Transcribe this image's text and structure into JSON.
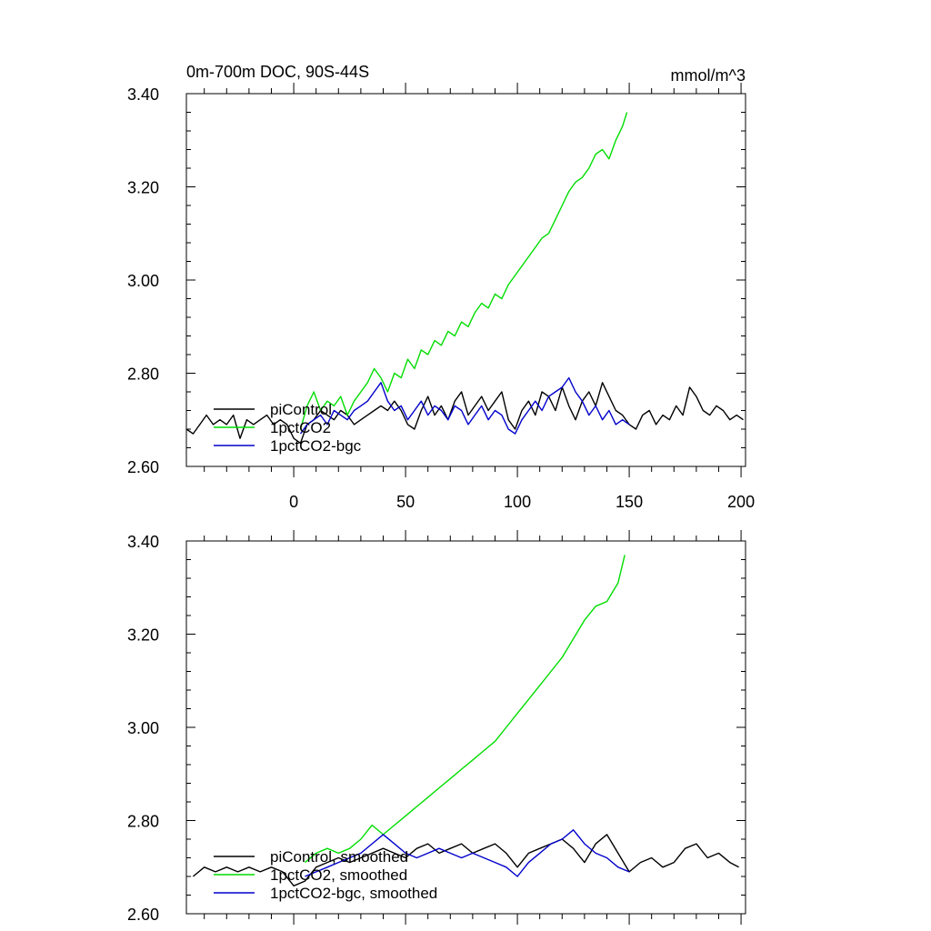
{
  "chart_data": [
    {
      "type": "line",
      "panel": "top",
      "title": "0m-700m DOC, 90S-44S",
      "units": "mmol/m^3",
      "xlim": [
        -48,
        202
      ],
      "ylim": [
        2.6,
        3.4
      ],
      "x_ticks": [
        0,
        50,
        100,
        150,
        200
      ],
      "x_tick_labels": [
        "0",
        "50",
        "100",
        "150",
        "200"
      ],
      "show_x_tick_labels": true,
      "y_ticks": [
        2.6,
        2.8,
        3.0,
        3.2,
        3.4
      ],
      "y_tick_labels": [
        "2.60",
        "2.80",
        "3.00",
        "3.20",
        "3.40"
      ],
      "legend_position": "bottom-left",
      "series": [
        {
          "name": "piControl",
          "color": "#000000",
          "x": [
            -48,
            -45,
            -42,
            -39,
            -36,
            -33,
            -30,
            -27,
            -24,
            -21,
            -18,
            -15,
            -12,
            -9,
            -6,
            -3,
            0,
            3,
            6,
            9,
            12,
            15,
            18,
            21,
            24,
            27,
            30,
            33,
            36,
            39,
            42,
            45,
            48,
            51,
            54,
            57,
            60,
            63,
            66,
            69,
            72,
            75,
            78,
            81,
            84,
            87,
            90,
            93,
            96,
            99,
            102,
            105,
            108,
            111,
            114,
            117,
            120,
            123,
            126,
            129,
            132,
            135,
            138,
            141,
            144,
            147,
            150,
            153,
            156,
            159,
            162,
            165,
            168,
            171,
            174,
            177,
            180,
            183,
            186,
            189,
            192,
            195,
            198,
            201
          ],
          "values": [
            2.68,
            2.67,
            2.69,
            2.71,
            2.69,
            2.7,
            2.69,
            2.71,
            2.66,
            2.7,
            2.69,
            2.7,
            2.71,
            2.69,
            2.7,
            2.69,
            2.66,
            2.65,
            2.69,
            2.7,
            2.72,
            2.71,
            2.7,
            2.72,
            2.71,
            2.69,
            2.7,
            2.71,
            2.72,
            2.73,
            2.72,
            2.74,
            2.72,
            2.69,
            2.68,
            2.72,
            2.75,
            2.71,
            2.73,
            2.7,
            2.74,
            2.76,
            2.71,
            2.73,
            2.75,
            2.72,
            2.74,
            2.76,
            2.7,
            2.68,
            2.72,
            2.74,
            2.71,
            2.76,
            2.75,
            2.72,
            2.77,
            2.73,
            2.7,
            2.74,
            2.76,
            2.73,
            2.78,
            2.75,
            2.72,
            2.71,
            2.69,
            2.68,
            2.71,
            2.72,
            2.69,
            2.71,
            2.7,
            2.73,
            2.71,
            2.77,
            2.75,
            2.72,
            2.71,
            2.73,
            2.72,
            2.7,
            2.71,
            2.7
          ]
        },
        {
          "name": "1pctCO2",
          "color": "#00dd00",
          "x": [
            3,
            6,
            9,
            12,
            15,
            18,
            21,
            24,
            27,
            30,
            33,
            36,
            39,
            42,
            45,
            48,
            51,
            54,
            57,
            60,
            63,
            66,
            69,
            72,
            75,
            78,
            81,
            84,
            87,
            90,
            93,
            96,
            99,
            102,
            105,
            108,
            111,
            114,
            117,
            120,
            123,
            126,
            129,
            132,
            135,
            138,
            141,
            144,
            147,
            149
          ],
          "values": [
            2.68,
            2.73,
            2.76,
            2.72,
            2.74,
            2.73,
            2.75,
            2.71,
            2.74,
            2.76,
            2.78,
            2.81,
            2.79,
            2.76,
            2.8,
            2.79,
            2.83,
            2.81,
            2.85,
            2.84,
            2.87,
            2.86,
            2.89,
            2.88,
            2.91,
            2.9,
            2.93,
            2.95,
            2.94,
            2.97,
            2.96,
            2.99,
            3.01,
            3.03,
            3.05,
            3.07,
            3.09,
            3.1,
            3.13,
            3.16,
            3.19,
            3.21,
            3.22,
            3.24,
            3.27,
            3.28,
            3.26,
            3.3,
            3.33,
            3.36
          ]
        },
        {
          "name": "1pctCO2-bgc",
          "color": "#0000cc",
          "x": [
            3,
            6,
            9,
            12,
            15,
            18,
            21,
            24,
            27,
            30,
            33,
            36,
            39,
            42,
            45,
            48,
            51,
            54,
            57,
            60,
            63,
            66,
            69,
            72,
            75,
            78,
            81,
            84,
            87,
            90,
            93,
            96,
            99,
            102,
            105,
            108,
            111,
            114,
            117,
            120,
            123,
            126,
            129,
            132,
            135,
            138,
            141,
            144,
            147,
            150
          ],
          "values": [
            2.67,
            2.69,
            2.7,
            2.71,
            2.69,
            2.72,
            2.71,
            2.7,
            2.72,
            2.73,
            2.74,
            2.76,
            2.78,
            2.74,
            2.72,
            2.73,
            2.7,
            2.72,
            2.74,
            2.71,
            2.73,
            2.72,
            2.7,
            2.73,
            2.72,
            2.69,
            2.71,
            2.73,
            2.7,
            2.72,
            2.71,
            2.68,
            2.67,
            2.7,
            2.72,
            2.74,
            2.72,
            2.75,
            2.76,
            2.77,
            2.79,
            2.76,
            2.74,
            2.71,
            2.73,
            2.7,
            2.72,
            2.69,
            2.7,
            2.69
          ]
        }
      ]
    },
    {
      "type": "line",
      "panel": "bottom",
      "title": "",
      "units": "",
      "xlim": [
        -48,
        202
      ],
      "ylim": [
        2.6,
        3.4
      ],
      "x_ticks": [
        0,
        50,
        100,
        150,
        200
      ],
      "x_tick_labels": [
        "",
        "",
        "",
        "",
        ""
      ],
      "show_x_tick_labels": false,
      "y_ticks": [
        2.6,
        2.8,
        3.0,
        3.2,
        3.4
      ],
      "y_tick_labels": [
        "2.60",
        "2.80",
        "3.00",
        "3.20",
        "3.40"
      ],
      "legend_position": "bottom-left",
      "series": [
        {
          "name": "piControl, smoothed",
          "color": "#000000",
          "x": [
            -45,
            -40,
            -35,
            -30,
            -25,
            -20,
            -15,
            -10,
            -5,
            0,
            5,
            10,
            15,
            20,
            25,
            30,
            35,
            40,
            45,
            50,
            55,
            60,
            65,
            70,
            75,
            80,
            85,
            90,
            95,
            100,
            105,
            110,
            115,
            120,
            125,
            130,
            135,
            140,
            145,
            150,
            155,
            160,
            165,
            170,
            175,
            180,
            185,
            190,
            195,
            199
          ],
          "values": [
            2.68,
            2.7,
            2.69,
            2.7,
            2.69,
            2.7,
            2.69,
            2.7,
            2.69,
            2.66,
            2.67,
            2.7,
            2.71,
            2.72,
            2.71,
            2.72,
            2.73,
            2.74,
            2.73,
            2.72,
            2.74,
            2.75,
            2.73,
            2.74,
            2.75,
            2.73,
            2.74,
            2.75,
            2.73,
            2.7,
            2.73,
            2.74,
            2.75,
            2.76,
            2.74,
            2.71,
            2.75,
            2.77,
            2.73,
            2.69,
            2.71,
            2.72,
            2.7,
            2.71,
            2.74,
            2.75,
            2.72,
            2.73,
            2.71,
            2.7
          ]
        },
        {
          "name": "1pctCO2, smoothed",
          "color": "#00dd00",
          "x": [
            5,
            10,
            15,
            20,
            25,
            30,
            35,
            40,
            45,
            50,
            55,
            60,
            65,
            70,
            75,
            80,
            85,
            90,
            95,
            100,
            105,
            110,
            115,
            120,
            125,
            130,
            135,
            140,
            145,
            148
          ],
          "values": [
            2.71,
            2.73,
            2.74,
            2.73,
            2.74,
            2.76,
            2.79,
            2.77,
            2.79,
            2.81,
            2.83,
            2.85,
            2.87,
            2.89,
            2.91,
            2.93,
            2.95,
            2.97,
            3.0,
            3.03,
            3.06,
            3.09,
            3.12,
            3.15,
            3.19,
            3.23,
            3.26,
            3.27,
            3.31,
            3.37
          ]
        },
        {
          "name": "1pctCO2-bgc, smoothed",
          "color": "#0000cc",
          "x": [
            5,
            10,
            15,
            20,
            25,
            30,
            35,
            40,
            45,
            50,
            55,
            60,
            65,
            70,
            75,
            80,
            85,
            90,
            95,
            100,
            105,
            110,
            115,
            120,
            125,
            130,
            135,
            140,
            145,
            150
          ],
          "values": [
            2.68,
            2.69,
            2.7,
            2.71,
            2.72,
            2.73,
            2.75,
            2.77,
            2.75,
            2.73,
            2.72,
            2.73,
            2.74,
            2.73,
            2.72,
            2.73,
            2.72,
            2.71,
            2.7,
            2.68,
            2.71,
            2.73,
            2.75,
            2.76,
            2.78,
            2.75,
            2.73,
            2.72,
            2.7,
            2.69
          ]
        }
      ]
    }
  ]
}
